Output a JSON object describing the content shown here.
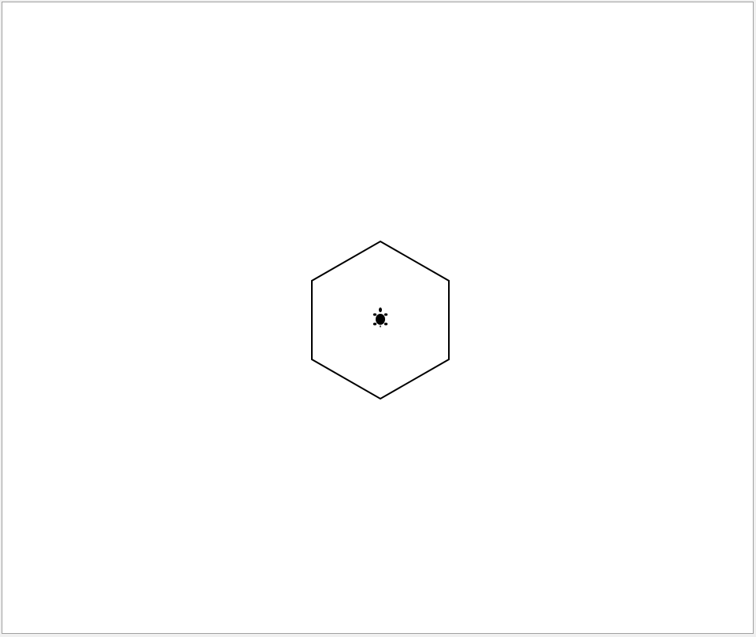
{
  "canvas": {
    "background": "#ffffff",
    "border_color": "#a0a0a0"
  },
  "drawing": {
    "shape": "hexagon",
    "sides": 6,
    "pen_color": "#000000",
    "fill": "none"
  },
  "turtle": {
    "icon": "turtle-icon",
    "heading": "up",
    "color": "#000000"
  }
}
